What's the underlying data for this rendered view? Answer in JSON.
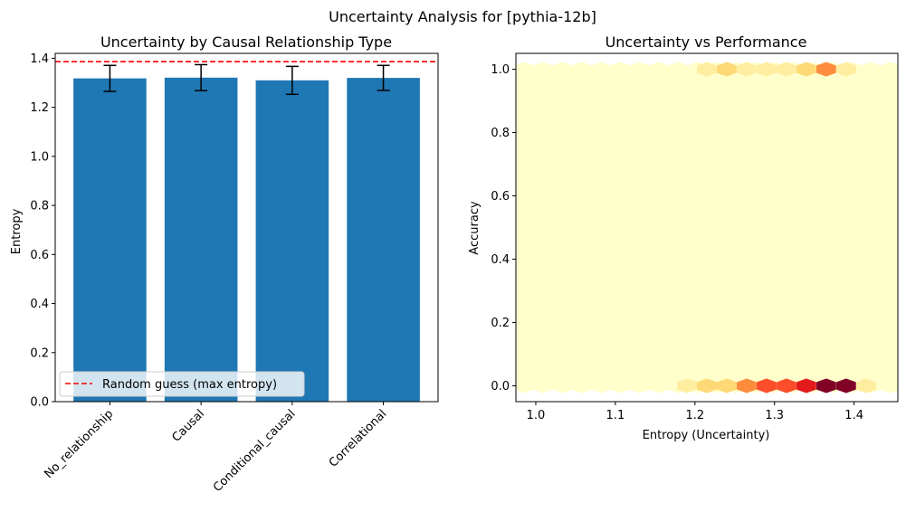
{
  "figure": {
    "suptitle": "Uncertainty Analysis for [pythia-12b]"
  },
  "chart_data": [
    {
      "type": "bar",
      "title": "Uncertainty by Causal Relationship Type",
      "xlabel": "",
      "ylabel": "Entropy",
      "categories": [
        "No_relationship",
        "Causal",
        "Conditional_causal",
        "Correlational"
      ],
      "values": [
        1.318,
        1.321,
        1.31,
        1.32
      ],
      "errors": [
        0.053,
        0.053,
        0.057,
        0.051
      ],
      "ylim": [
        0,
        1.42
      ],
      "yticks": [
        "0.0",
        "0.2",
        "0.4",
        "0.6",
        "0.8",
        "1.0",
        "1.2",
        "1.4"
      ],
      "bar_color": "#1f77b4",
      "reference_line": {
        "value": 1.386,
        "label": "Random guess (max entropy)",
        "color": "#ff0000",
        "style": "dashed"
      },
      "legend_position": "lower-left",
      "grid": false
    },
    {
      "type": "heatmap",
      "subtype": "hexbin",
      "title": "Uncertainty vs Performance",
      "xlabel": "Entropy (Uncertainty)",
      "ylabel": "Accuracy",
      "xlim": [
        0.975,
        1.455
      ],
      "ylim": [
        -0.05,
        1.05
      ],
      "xticks": [
        "1.0",
        "1.1",
        "1.2",
        "1.3",
        "1.4"
      ],
      "yticks": [
        "0.0",
        "0.2",
        "0.4",
        "0.6",
        "0.8",
        "1.0"
      ],
      "colormap": "YlOrRd",
      "colors": {
        "base": "#ffffcc",
        "low": "#ffeda0",
        "mid_low": "#fed976",
        "mid": "#fd8d3c",
        "mid_high": "#fc4e2a",
        "high": "#e31a1c",
        "max": "#800026"
      },
      "grid": false,
      "hot_cells": [
        {
          "entropy": 1.19,
          "accuracy": 0.0,
          "level": "low"
        },
        {
          "entropy": 1.215,
          "accuracy": 0.0,
          "level": "mid_low"
        },
        {
          "entropy": 1.24,
          "accuracy": 0.0,
          "level": "mid_low"
        },
        {
          "entropy": 1.265,
          "accuracy": 0.0,
          "level": "mid"
        },
        {
          "entropy": 1.29,
          "accuracy": 0.0,
          "level": "mid_high"
        },
        {
          "entropy": 1.315,
          "accuracy": 0.0,
          "level": "mid_high"
        },
        {
          "entropy": 1.34,
          "accuracy": 0.0,
          "level": "high"
        },
        {
          "entropy": 1.365,
          "accuracy": 0.0,
          "level": "max"
        },
        {
          "entropy": 1.39,
          "accuracy": 0.0,
          "level": "max"
        },
        {
          "entropy": 1.415,
          "accuracy": 0.0,
          "level": "low"
        },
        {
          "entropy": 1.215,
          "accuracy": 1.0,
          "level": "low"
        },
        {
          "entropy": 1.24,
          "accuracy": 1.0,
          "level": "mid_low"
        },
        {
          "entropy": 1.265,
          "accuracy": 1.0,
          "level": "low"
        },
        {
          "entropy": 1.29,
          "accuracy": 1.0,
          "level": "low"
        },
        {
          "entropy": 1.315,
          "accuracy": 1.0,
          "level": "low"
        },
        {
          "entropy": 1.34,
          "accuracy": 1.0,
          "level": "mid_low"
        },
        {
          "entropy": 1.365,
          "accuracy": 1.0,
          "level": "mid"
        },
        {
          "entropy": 1.39,
          "accuracy": 1.0,
          "level": "low"
        }
      ]
    }
  ]
}
